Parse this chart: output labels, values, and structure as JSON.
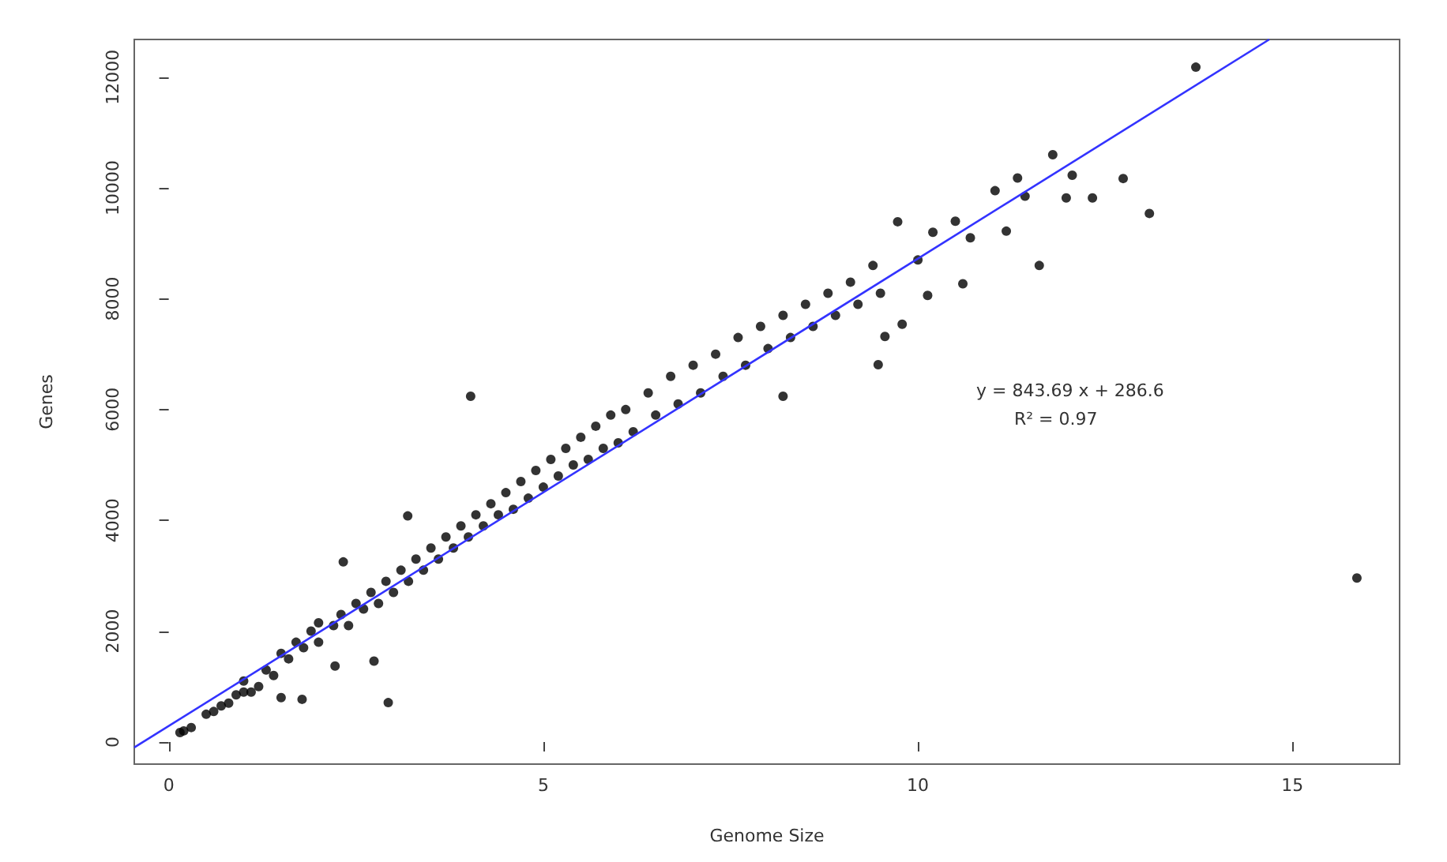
{
  "chart_data": {
    "type": "scatter",
    "xlabel": "Genome Size",
    "ylabel": "Genes",
    "xlim": [
      -0.46,
      16.43
    ],
    "ylim": [
      -400,
      12680
    ],
    "xticks": [
      0,
      5,
      10,
      15
    ],
    "yticks": [
      0,
      2000,
      4000,
      6000,
      8000,
      10000,
      12000
    ],
    "grid": false,
    "annotations": [
      "y = 843.69 x + 286.6",
      "R² = 0.97"
    ],
    "series": [
      {
        "color": "#000000",
        "marker": "circle",
        "x": [
          0.15,
          0.2,
          0.3,
          0.5,
          0.6,
          0.7,
          0.8,
          0.9,
          1.0,
          1.0,
          1.1,
          1.2,
          1.3,
          1.4,
          1.5,
          1.5,
          1.6,
          1.7,
          1.78,
          1.8,
          1.9,
          2.0,
          2.0,
          2.2,
          2.22,
          2.3,
          2.33,
          2.4,
          2.5,
          2.6,
          2.7,
          2.74,
          2.8,
          2.9,
          2.93,
          3.0,
          3.1,
          3.19,
          3.2,
          3.3,
          3.4,
          3.5,
          3.6,
          3.7,
          3.8,
          3.9,
          4.0,
          4.03,
          4.1,
          4.2,
          4.3,
          4.4,
          4.5,
          4.6,
          4.7,
          4.8,
          4.9,
          5.0,
          5.1,
          5.2,
          5.3,
          5.4,
          5.5,
          5.6,
          5.7,
          5.8,
          5.9,
          6.0,
          6.1,
          6.2,
          6.4,
          6.5,
          6.7,
          6.8,
          7.0,
          7.1,
          7.3,
          7.4,
          7.6,
          7.7,
          7.9,
          8.0,
          8.2,
          8.2,
          8.3,
          8.5,
          8.6,
          8.8,
          8.9,
          9.1,
          9.2,
          9.4,
          9.47,
          9.5,
          9.56,
          9.73,
          9.79,
          10.0,
          10.13,
          10.2,
          10.5,
          10.6,
          10.7,
          11.03,
          11.18,
          11.33,
          11.43,
          11.62,
          11.8,
          11.98,
          12.06,
          12.33,
          12.74,
          13.09,
          13.71,
          15.86
        ],
        "values": [
          170,
          200,
          260,
          500,
          550,
          650,
          700,
          850,
          900,
          1100,
          900,
          1000,
          1300,
          1200,
          1600,
          800,
          1500,
          1800,
          770,
          1700,
          2000,
          1800,
          2150,
          2100,
          1370,
          2300,
          3250,
          2100,
          2500,
          2400,
          2700,
          1460,
          2500,
          2900,
          710,
          2700,
          3100,
          4080,
          2900,
          3300,
          3100,
          3500,
          3300,
          3700,
          3500,
          3900,
          3700,
          6240,
          4100,
          3900,
          4300,
          4100,
          4500,
          4200,
          4700,
          4400,
          4900,
          4600,
          5100,
          4800,
          5300,
          5000,
          5500,
          5100,
          5700,
          5300,
          5900,
          5400,
          6000,
          5600,
          6300,
          5900,
          6600,
          6100,
          6800,
          6300,
          7000,
          6600,
          7300,
          6800,
          7500,
          7100,
          7700,
          6240,
          7300,
          7900,
          7500,
          8100,
          7700,
          8300,
          7900,
          8600,
          6810,
          8100,
          7320,
          9390,
          7540,
          8700,
          8060,
          9200,
          9400,
          8270,
          9100,
          9950,
          9220,
          10180,
          9850,
          8600,
          10600,
          9820,
          10230,
          9820,
          10170,
          9540,
          12180,
          2960
        ]
      },
      {
        "type": "line",
        "color": "#3333ff",
        "x": [
          -0.46,
          14.69
        ],
        "values": [
          -100,
          12680
        ]
      }
    ]
  }
}
